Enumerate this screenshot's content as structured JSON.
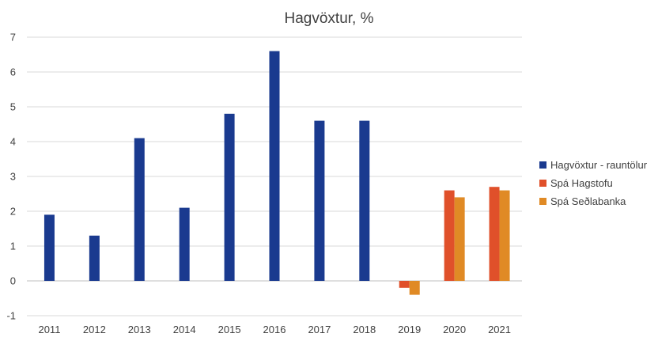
{
  "chart_data": {
    "type": "bar",
    "title": "Hagvöxtur,  %",
    "xlabel": "",
    "ylabel": "",
    "categories": [
      "2011",
      "2012",
      "2013",
      "2014",
      "2015",
      "2016",
      "2017",
      "2018",
      "2019",
      "2020",
      "2021"
    ],
    "ylim": [
      -1,
      7
    ],
    "yticks": [
      -1,
      0,
      1,
      2,
      3,
      4,
      5,
      6,
      7
    ],
    "grid": true,
    "legend_position": "right",
    "series": [
      {
        "name": "Hagvöxtur - rauntölur",
        "color": "#1a3a8f",
        "values": [
          1.9,
          1.3,
          4.1,
          2.1,
          4.8,
          6.6,
          4.6,
          4.6,
          null,
          null,
          null
        ]
      },
      {
        "name": "Spá Hagstofu",
        "color": "#e0502a",
        "values": [
          null,
          null,
          null,
          null,
          null,
          null,
          null,
          null,
          -0.2,
          2.6,
          2.7
        ]
      },
      {
        "name": "Spá Seðlabanka",
        "color": "#e08a25",
        "values": [
          null,
          null,
          null,
          null,
          null,
          null,
          null,
          null,
          -0.4,
          2.4,
          2.6
        ]
      }
    ]
  }
}
